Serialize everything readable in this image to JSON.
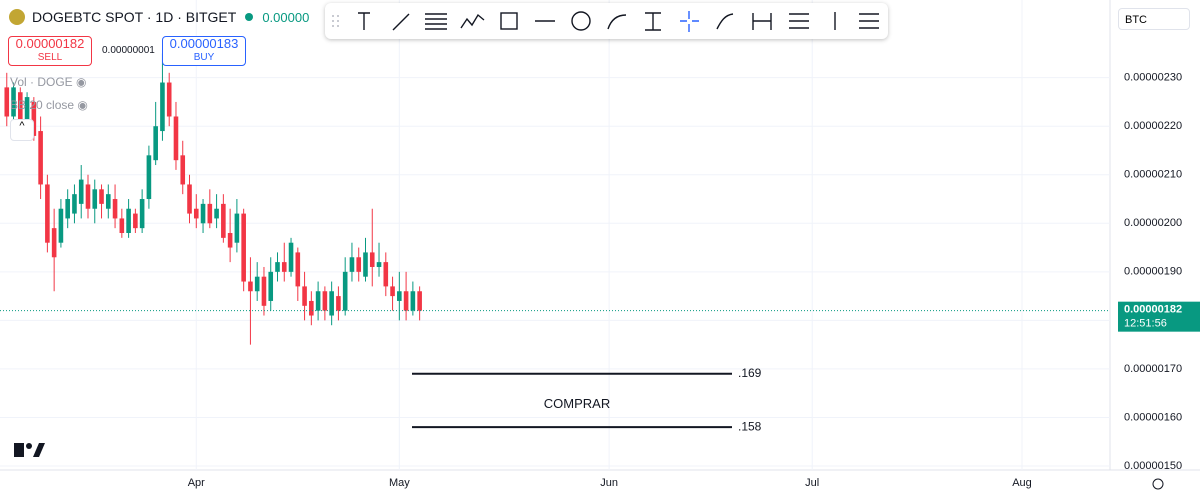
{
  "ui": {
    "title": "DOGEBTC SPOT · 1D · BITGET",
    "last": "0.00000",
    "sell_price": "0.00000182",
    "sell": "SELL",
    "spread": "0.00000001",
    "buy_price": "0.00000183",
    "buy": "BUY",
    "vol": "Vol · DOGE",
    "bb": "BB 20 close",
    "currency": "BTC"
  },
  "chart_data": {
    "type": "candlestick",
    "x": [
      0,
      1,
      2,
      3,
      4,
      5,
      6,
      7,
      8,
      9,
      10,
      11,
      12,
      13,
      14,
      15,
      16,
      17,
      18,
      19,
      20,
      21,
      22,
      23,
      24,
      25,
      26,
      27,
      28,
      29,
      30,
      31,
      32,
      33,
      34,
      35,
      36,
      37,
      38,
      39,
      40,
      41,
      42,
      43,
      44,
      45,
      46,
      47,
      48,
      49,
      50,
      51,
      52,
      53,
      54,
      55,
      56,
      57,
      58,
      59,
      60,
      61
    ],
    "open": [
      2.28e-06,
      2.22e-06,
      2.27e-06,
      2.2e-06,
      2.25e-06,
      2.19e-06,
      2.08e-06,
      1.99e-06,
      1.96e-06,
      2.01e-06,
      2.02e-06,
      2.04e-06,
      2.08e-06,
      2.03e-06,
      2.07e-06,
      2.03e-06,
      2.05e-06,
      2.01e-06,
      1.98e-06,
      2.02e-06,
      1.99e-06,
      2.05e-06,
      2.13e-06,
      2.19e-06,
      2.29e-06,
      2.22e-06,
      2.14e-06,
      2.08e-06,
      2.03e-06,
      2e-06,
      2.04e-06,
      2.01e-06,
      2.04e-06,
      1.98e-06,
      1.96e-06,
      2.02e-06,
      1.88e-06,
      1.86e-06,
      1.89e-06,
      1.84e-06,
      1.9e-06,
      1.92e-06,
      1.9e-06,
      1.94e-06,
      1.87e-06,
      1.84e-06,
      1.82e-06,
      1.86e-06,
      1.81e-06,
      1.85e-06,
      1.82e-06,
      1.9e-06,
      1.93e-06,
      1.89e-06,
      1.94e-06,
      1.91e-06,
      1.92e-06,
      1.87e-06,
      1.84e-06,
      1.86e-06,
      1.82e-06,
      1.86e-06
    ],
    "high": [
      2.31e-06,
      2.29e-06,
      2.28e-06,
      2.27e-06,
      2.26e-06,
      2.22e-06,
      2.1e-06,
      2.03e-06,
      2.05e-06,
      2.07e-06,
      2.08e-06,
      2.12e-06,
      2.1e-06,
      2.09e-06,
      2.08e-06,
      2.08e-06,
      2.08e-06,
      2.03e-06,
      2.05e-06,
      2.03e-06,
      2.07e-06,
      2.16e-06,
      2.25e-06,
      2.35e-06,
      2.31e-06,
      2.25e-06,
      2.17e-06,
      2.1e-06,
      2.06e-06,
      2.05e-06,
      2.07e-06,
      2.06e-06,
      2.06e-06,
      2.03e-06,
      2.05e-06,
      2.03e-06,
      1.93e-06,
      1.92e-06,
      1.91e-06,
      1.93e-06,
      1.94e-06,
      1.96e-06,
      1.97e-06,
      1.95e-06,
      1.9e-06,
      1.86e-06,
      1.88e-06,
      1.87e-06,
      1.88e-06,
      1.87e-06,
      1.93e-06,
      1.96e-06,
      1.95e-06,
      1.97e-06,
      2.03e-06,
      1.96e-06,
      1.94e-06,
      1.89e-06,
      1.9e-06,
      1.9e-06,
      1.88e-06,
      1.87e-06
    ],
    "low": [
      2.2e-06,
      2.21e-06,
      2.19e-06,
      2.19e-06,
      2.17e-06,
      2.05e-06,
      1.94e-06,
      1.86e-06,
      1.95e-06,
      1.99e-06,
      2e-06,
      2.01e-06,
      2.01e-06,
      2e-06,
      2.01e-06,
      2.01e-06,
      1.99e-06,
      1.97e-06,
      1.97e-06,
      1.98e-06,
      1.98e-06,
      2.03e-06,
      2.12e-06,
      2.17e-06,
      2.2e-06,
      2.11e-06,
      2.06e-06,
      2e-06,
      1.99e-06,
      1.98e-06,
      1.99e-06,
      1.99e-06,
      1.96e-06,
      1.92e-06,
      1.94e-06,
      1.86e-06,
      1.75e-06,
      1.84e-06,
      1.81e-06,
      1.82e-06,
      1.88e-06,
      1.88e-06,
      1.89e-06,
      1.84e-06,
      1.8e-06,
      1.79e-06,
      1.8e-06,
      1.8e-06,
      1.79e-06,
      1.8e-06,
      1.81e-06,
      1.88e-06,
      1.88e-06,
      1.88e-06,
      1.87e-06,
      1.89e-06,
      1.85e-06,
      1.82e-06,
      1.8e-06,
      1.8e-06,
      1.81e-06,
      1.8e-06
    ],
    "close": [
      2.22e-06,
      2.28e-06,
      2.2e-06,
      2.26e-06,
      2.18e-06,
      2.08e-06,
      1.96e-06,
      1.93e-06,
      2.03e-06,
      2.05e-06,
      2.06e-06,
      2.09e-06,
      2.03e-06,
      2.07e-06,
      2.04e-06,
      2.06e-06,
      2.01e-06,
      1.98e-06,
      2.03e-06,
      1.99e-06,
      2.05e-06,
      2.14e-06,
      2.2e-06,
      2.29e-06,
      2.22e-06,
      2.13e-06,
      2.08e-06,
      2.02e-06,
      2.01e-06,
      2.04e-06,
      2e-06,
      2.03e-06,
      1.97e-06,
      1.95e-06,
      2.02e-06,
      1.88e-06,
      1.86e-06,
      1.89e-06,
      1.83e-06,
      1.9e-06,
      1.92e-06,
      1.9e-06,
      1.96e-06,
      1.87e-06,
      1.83e-06,
      1.81e-06,
      1.86e-06,
      1.82e-06,
      1.86e-06,
      1.82e-06,
      1.9e-06,
      1.93e-06,
      1.9e-06,
      1.94e-06,
      1.91e-06,
      1.92e-06,
      1.87e-06,
      1.85e-06,
      1.86e-06,
      1.82e-06,
      1.86e-06,
      1.82e-06
    ],
    "up_color": "#089981",
    "down_color": "#f23645",
    "xlim": [
      -1,
      163
    ],
    "xticks": [
      {
        "value": 28,
        "label": "Apr"
      },
      {
        "value": 58,
        "label": "May"
      },
      {
        "value": 89,
        "label": "Jun"
      },
      {
        "value": 119,
        "label": "Jul"
      },
      {
        "value": 150,
        "label": "Aug"
      }
    ],
    "ylim": [
      1.5e-06,
      2.46e-06
    ],
    "yticks": [
      {
        "value": 1.5e-06,
        "label": "0.00000150"
      },
      {
        "value": 1.6e-06,
        "label": "0.00000160"
      },
      {
        "value": 1.7e-06,
        "label": "0.00000170"
      },
      {
        "value": 1.8e-06,
        "label": "0.00000180"
      },
      {
        "value": 1.9e-06,
        "label": "0.00000190"
      },
      {
        "value": 2e-06,
        "label": "0.00000200"
      },
      {
        "value": 2.1e-06,
        "label": "0.00000210"
      },
      {
        "value": 2.2e-06,
        "label": "0.00000220"
      },
      {
        "value": 2.3e-06,
        "label": "0.00000230"
      }
    ],
    "grid": true,
    "last_price": {
      "value": 1.82e-06,
      "label": "0.00000182"
    },
    "countdown": "12:51:56",
    "levels": [
      {
        "value": 1.69e-06,
        "label": ".169"
      },
      {
        "value": 1.58e-06,
        "label": ".158"
      }
    ],
    "annotation": "COMPRAR"
  }
}
